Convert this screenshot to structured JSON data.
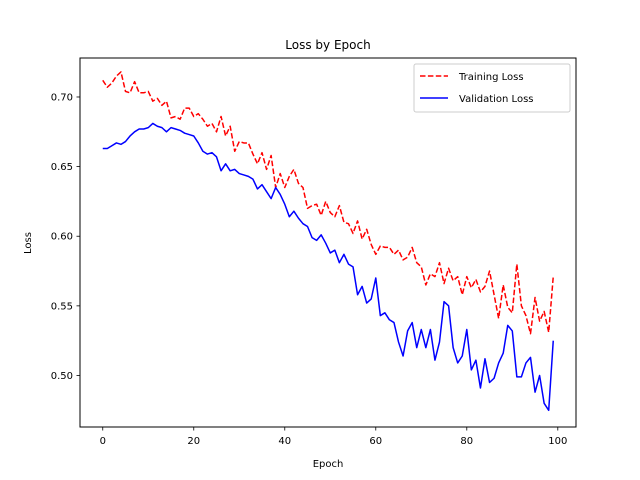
{
  "chart_data": {
    "type": "line",
    "title": "Loss by Epoch",
    "xlabel": "Epoch",
    "ylabel": "Loss",
    "xlim": [
      -5,
      104
    ],
    "ylim": [
      0.463,
      0.728
    ],
    "xticks": [
      0,
      20,
      40,
      60,
      80,
      100
    ],
    "yticks": [
      0.5,
      0.55,
      0.6,
      0.65,
      0.7
    ],
    "ytick_labels": [
      "0.50",
      "0.55",
      "0.60",
      "0.65",
      "0.70"
    ],
    "xtick_labels": [
      "0",
      "20",
      "40",
      "60",
      "80",
      "100"
    ],
    "grid": false,
    "legend_position": "top-right",
    "x": [
      0,
      1,
      2,
      3,
      4,
      5,
      6,
      7,
      8,
      9,
      10,
      11,
      12,
      13,
      14,
      15,
      16,
      17,
      18,
      19,
      20,
      21,
      22,
      23,
      24,
      25,
      26,
      27,
      28,
      29,
      30,
      31,
      32,
      33,
      34,
      35,
      36,
      37,
      38,
      39,
      40,
      41,
      42,
      43,
      44,
      45,
      46,
      47,
      48,
      49,
      50,
      51,
      52,
      53,
      54,
      55,
      56,
      57,
      58,
      59,
      60,
      61,
      62,
      63,
      64,
      65,
      66,
      67,
      68,
      69,
      70,
      71,
      72,
      73,
      74,
      75,
      76,
      77,
      78,
      79,
      80,
      81,
      82,
      83,
      84,
      85,
      86,
      87,
      88,
      89,
      90,
      91,
      92,
      93,
      94,
      95,
      96,
      97,
      98,
      99
    ],
    "series": [
      {
        "name": "Training Loss",
        "color": "#ff0000",
        "dash": "dashed",
        "values": [
          0.712,
          0.707,
          0.71,
          0.715,
          0.718,
          0.704,
          0.703,
          0.711,
          0.703,
          0.703,
          0.704,
          0.697,
          0.699,
          0.694,
          0.697,
          0.685,
          0.686,
          0.684,
          0.692,
          0.692,
          0.686,
          0.688,
          0.684,
          0.679,
          0.681,
          0.675,
          0.686,
          0.672,
          0.679,
          0.661,
          0.668,
          0.667,
          0.667,
          0.659,
          0.652,
          0.66,
          0.648,
          0.658,
          0.635,
          0.645,
          0.635,
          0.643,
          0.648,
          0.638,
          0.635,
          0.62,
          0.622,
          0.623,
          0.615,
          0.625,
          0.617,
          0.614,
          0.622,
          0.61,
          0.609,
          0.602,
          0.611,
          0.598,
          0.605,
          0.594,
          0.587,
          0.593,
          0.592,
          0.592,
          0.587,
          0.59,
          0.583,
          0.585,
          0.592,
          0.581,
          0.578,
          0.565,
          0.573,
          0.571,
          0.581,
          0.566,
          0.577,
          0.568,
          0.571,
          0.558,
          0.571,
          0.563,
          0.569,
          0.56,
          0.564,
          0.575,
          0.558,
          0.541,
          0.565,
          0.549,
          0.545,
          0.58,
          0.55,
          0.543,
          0.53,
          0.556,
          0.539,
          0.546,
          0.531,
          0.571
        ]
      },
      {
        "name": "Validation Loss",
        "color": "#0000ff",
        "dash": "solid",
        "values": [
          0.663,
          0.663,
          0.665,
          0.667,
          0.666,
          0.668,
          0.672,
          0.675,
          0.677,
          0.677,
          0.678,
          0.681,
          0.679,
          0.678,
          0.675,
          0.678,
          0.677,
          0.676,
          0.674,
          0.673,
          0.672,
          0.667,
          0.661,
          0.659,
          0.66,
          0.657,
          0.647,
          0.652,
          0.647,
          0.648,
          0.645,
          0.644,
          0.643,
          0.641,
          0.634,
          0.637,
          0.632,
          0.627,
          0.635,
          0.63,
          0.623,
          0.614,
          0.618,
          0.613,
          0.609,
          0.607,
          0.599,
          0.597,
          0.601,
          0.595,
          0.588,
          0.59,
          0.581,
          0.587,
          0.58,
          0.578,
          0.558,
          0.564,
          0.552,
          0.555,
          0.57,
          0.543,
          0.545,
          0.54,
          0.538,
          0.524,
          0.514,
          0.532,
          0.538,
          0.52,
          0.533,
          0.52,
          0.533,
          0.511,
          0.524,
          0.553,
          0.55,
          0.52,
          0.509,
          0.514,
          0.533,
          0.504,
          0.511,
          0.491,
          0.512,
          0.495,
          0.498,
          0.509,
          0.516,
          0.536,
          0.532,
          0.499,
          0.499,
          0.509,
          0.513,
          0.488,
          0.5,
          0.48,
          0.475,
          0.525
        ]
      }
    ]
  }
}
